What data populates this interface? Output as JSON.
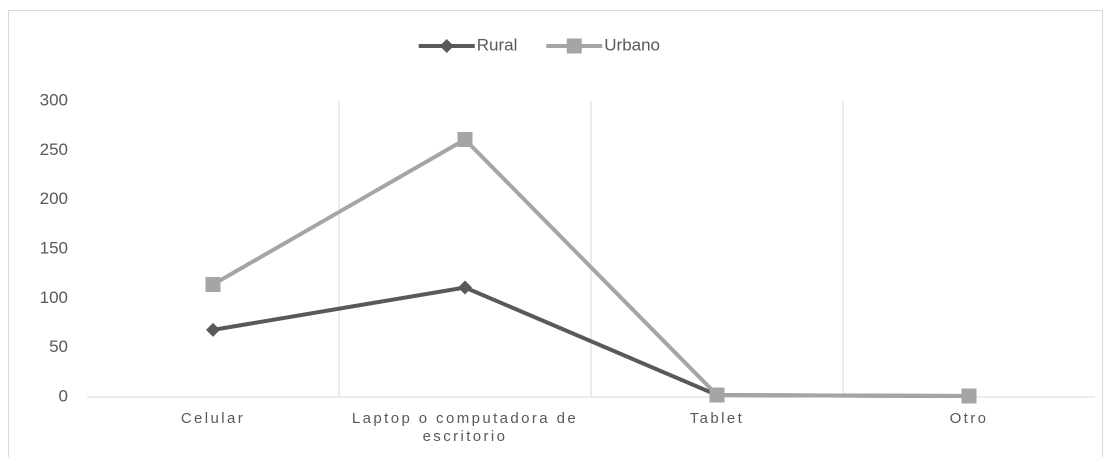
{
  "chart_data": {
    "type": "line",
    "categories": [
      "Celular",
      "Laptop o computadora de escritorio",
      "Tablet",
      "Otro"
    ],
    "series": [
      {
        "name": "Rural",
        "color": "#595959",
        "marker": "diamond",
        "values": [
          68,
          111,
          2,
          1
        ]
      },
      {
        "name": "Urbano",
        "color": "#a5a5a5",
        "marker": "square",
        "values": [
          114,
          261,
          2,
          1
        ]
      }
    ],
    "ylim": [
      0,
      300
    ],
    "yticks": [
      0,
      50,
      100,
      150,
      200,
      250,
      300
    ],
    "legend": "top"
  }
}
